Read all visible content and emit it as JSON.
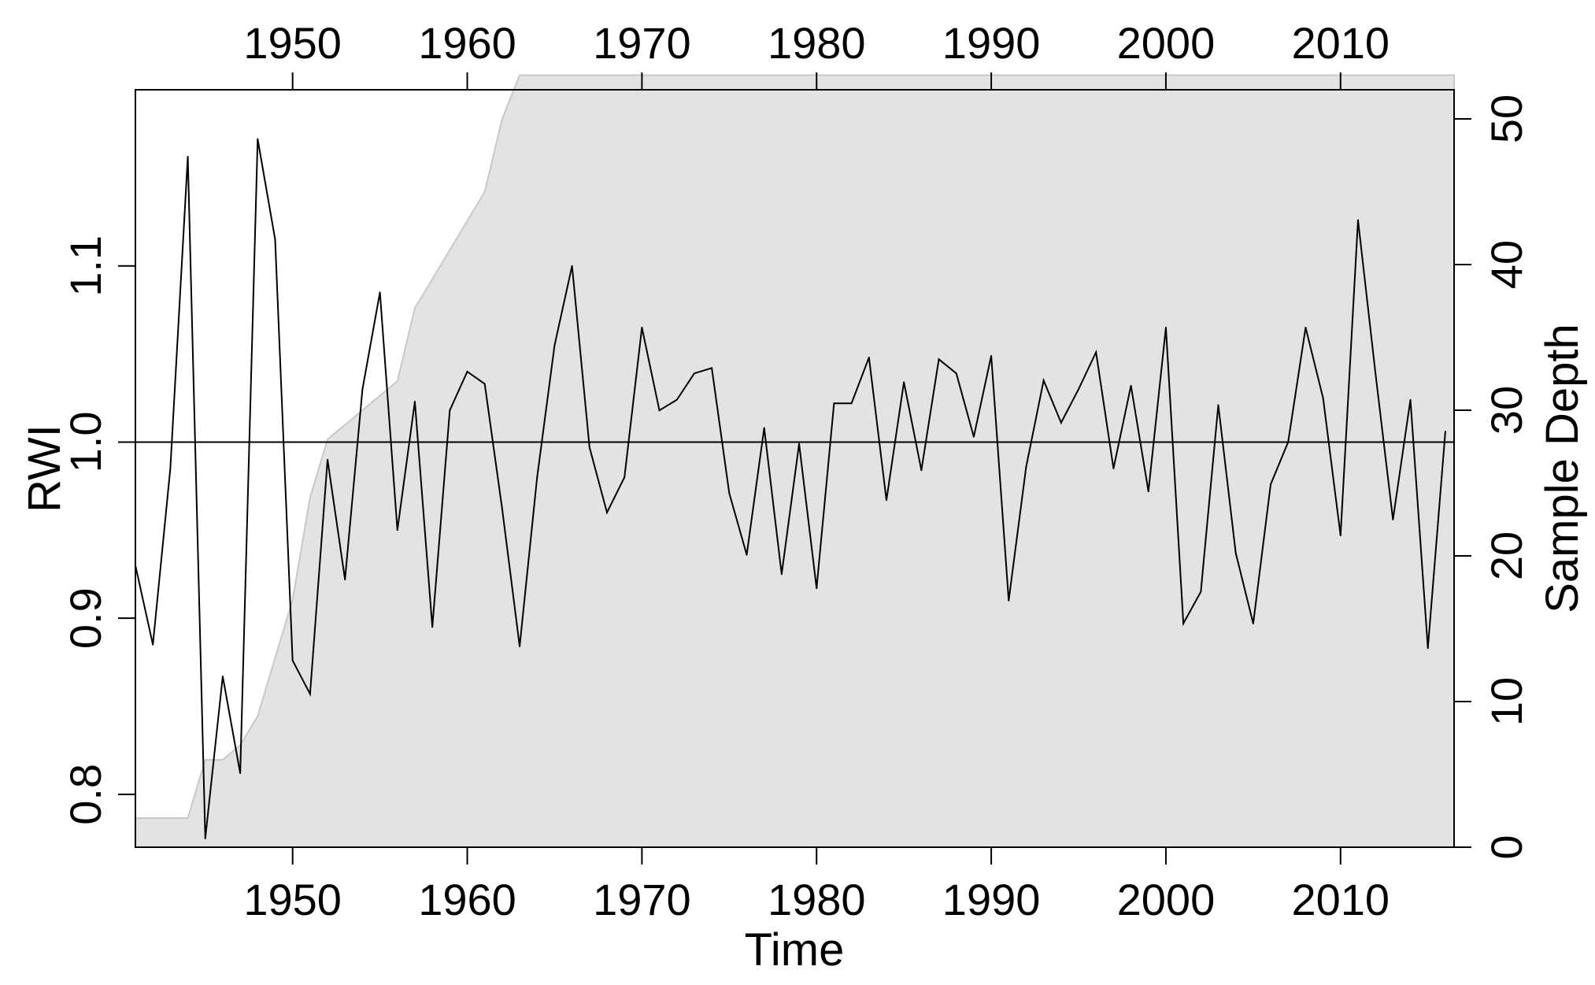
{
  "chart_data": {
    "type": "line",
    "xlabel": "Time",
    "ylabel": "RWI",
    "y2label": "Sample Depth",
    "xlim": [
      1941,
      2016.5
    ],
    "ylim": [
      0.77,
      1.2
    ],
    "y2lim": [
      0,
      52
    ],
    "x_ticks": [
      1950,
      1960,
      1970,
      1980,
      1990,
      2000,
      2010
    ],
    "y_ticks": [
      0.8,
      0.9,
      1.0,
      1.1
    ],
    "y2_ticks": [
      0,
      10,
      20,
      30,
      40,
      50
    ],
    "reference_line": 1.0,
    "grid": false,
    "series": [
      {
        "role": "rwi",
        "color": "#000000",
        "x": [
          1941,
          1942,
          1943,
          1944,
          1945,
          1946,
          1947,
          1948,
          1949,
          1950,
          1951,
          1952,
          1953,
          1954,
          1955,
          1956,
          1957,
          1958,
          1959,
          1960,
          1961,
          1962,
          1963,
          1964,
          1965,
          1966,
          1967,
          1968,
          1969,
          1970,
          1971,
          1972,
          1973,
          1974,
          1975,
          1976,
          1977,
          1978,
          1979,
          1980,
          1981,
          1982,
          1983,
          1984,
          1985,
          1986,
          1987,
          1988,
          1989,
          1990,
          1991,
          1992,
          1993,
          1994,
          1995,
          1996,
          1997,
          1998,
          1999,
          2000,
          2001,
          2002,
          2003,
          2004,
          2005,
          2006,
          2007,
          2008,
          2009,
          2010,
          2011,
          2012,
          2013,
          2014,
          2015,
          2016
        ],
        "values": [
          0.93,
          0.885,
          0.985,
          1.162,
          0.775,
          0.867,
          0.812,
          1.172,
          1.115,
          0.876,
          0.857,
          0.99,
          0.922,
          1.03,
          1.085,
          0.95,
          1.023,
          0.895,
          1.018,
          1.04,
          1.033,
          0.962,
          0.884,
          0.98,
          1.055,
          1.1,
          0.997,
          0.96,
          0.98,
          1.065,
          1.018,
          1.024,
          1.039,
          1.042,
          0.971,
          0.936,
          1.008,
          0.925,
          0.999,
          0.917,
          1.022,
          1.022,
          1.048,
          0.967,
          1.034,
          0.984,
          1.047,
          1.039,
          1.003,
          1.049,
          0.91,
          0.986,
          1.035,
          1.011,
          1.03,
          1.051,
          0.985,
          1.032,
          0.972,
          1.065,
          0.897,
          0.915,
          1.021,
          0.937,
          0.897,
          0.976,
          1.0,
          1.065,
          1.025,
          0.947,
          1.126,
          1.039,
          0.956,
          1.024,
          0.883,
          1.006
        ]
      },
      {
        "role": "sample_depth",
        "color": "#e3e3e3",
        "x": [
          1941,
          1944,
          1945,
          1946,
          1947,
          1948,
          1949,
          1950,
          1951,
          1952,
          1953,
          1954,
          1955,
          1956,
          1957,
          1958,
          1959,
          1960,
          1961,
          1962,
          1963,
          2016.5
        ],
        "values": [
          2,
          2,
          6,
          6,
          7,
          9,
          13,
          17,
          24,
          28,
          29,
          30,
          31,
          32,
          37,
          39,
          41,
          43,
          45,
          50,
          53,
          53
        ]
      }
    ]
  }
}
